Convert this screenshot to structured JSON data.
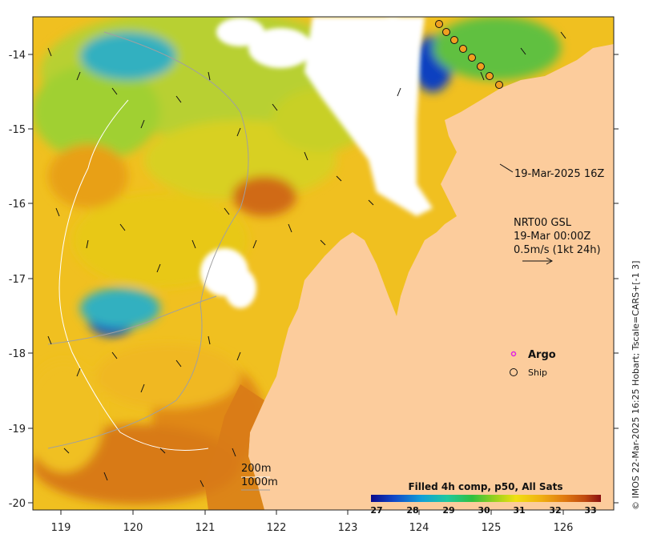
{
  "map": {
    "x_ticks": [
      "119",
      "120",
      "121",
      "122",
      "123",
      "124",
      "125",
      "126"
    ],
    "y_ticks": [
      "-14",
      "-15",
      "-16",
      "-17",
      "-18",
      "-19",
      "-20"
    ],
    "ship_label": "19-Mar-2025 16Z",
    "current_title": "NRT00 GSL",
    "current_time": "19-Mar 00:00Z",
    "current_scale": "0.5m/s (1kt 24h)",
    "legend_argo": "Argo",
    "legend_ship": "Ship",
    "isobath_200": "200m",
    "isobath_1000": "1000m",
    "colorbar_title": "Filled 4h comp, p50, All Sats",
    "colorbar_ticks": [
      "27",
      "28",
      "29",
      "30",
      "31",
      "32",
      "33"
    ],
    "credit": "© IMOS 22-Mar-2025 16:25 Hobart; Tscale=CARS+[-1 3]",
    "colors": {
      "land": "#fccc9c",
      "cloud": "#ffffff",
      "sst_scale": [
        "#0a0a8c",
        "#1048c8",
        "#10a0d8",
        "#20c8a0",
        "#30c040",
        "#90d020",
        "#f0e010",
        "#f0b010",
        "#e07a10",
        "#c04a10",
        "#8a1010"
      ]
    }
  }
}
